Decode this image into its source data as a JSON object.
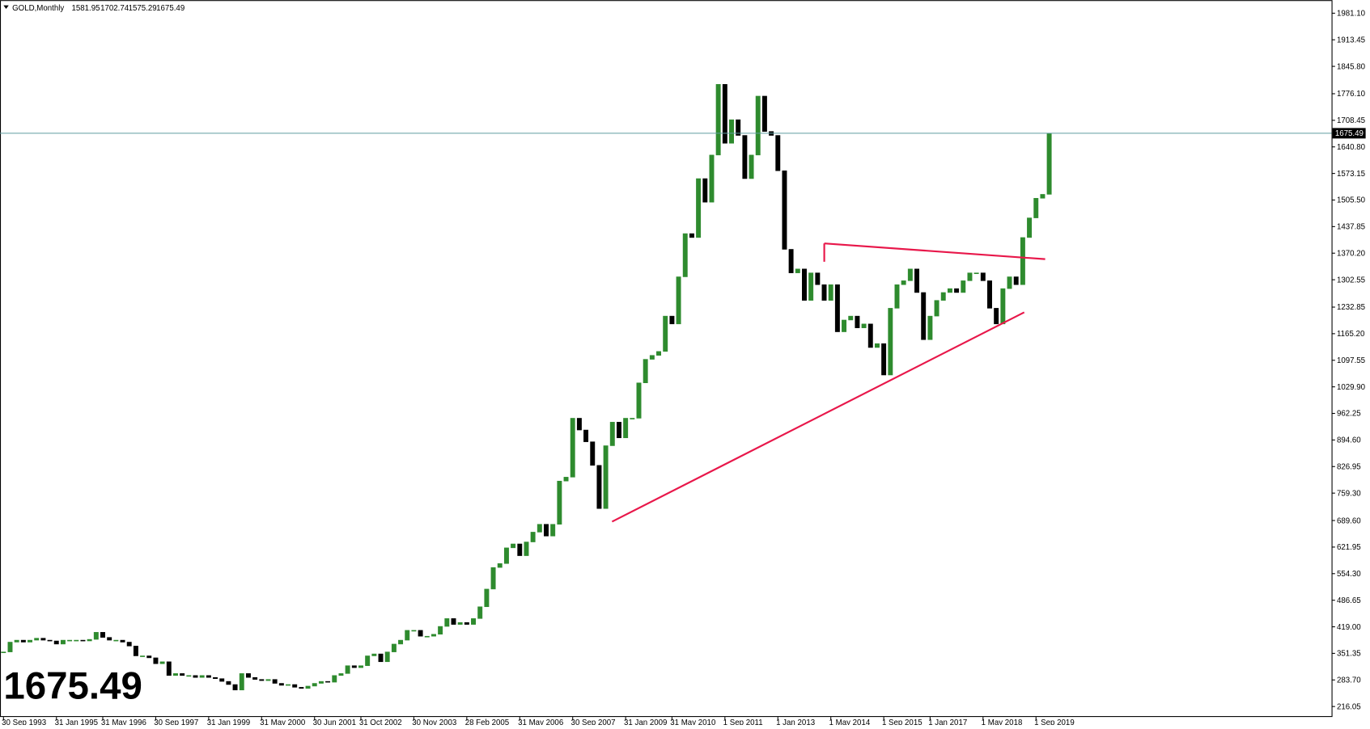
{
  "chart_data": {
    "type": "candlestick",
    "symbol": "GOLD,Monthly",
    "last_bar": {
      "open": "1581.95",
      "high": "1702.74",
      "low": "1575.29",
      "close": "1675.49"
    },
    "categories": [
      "30 Sep 1993",
      null,
      null,
      null,
      null,
      null,
      null,
      null,
      "31 Jan 1995",
      null,
      null,
      null,
      null,
      null,
      null,
      "31 May 1996",
      null,
      null,
      null,
      null,
      null,
      null,
      null,
      "30 Sep 1997",
      null,
      null,
      null,
      null,
      null,
      null,
      null,
      "31 Jan 1999",
      null,
      null,
      null,
      null,
      null,
      null,
      null,
      "31 May 2000",
      null,
      null,
      null,
      null,
      null,
      null,
      null,
      "30 Jun 2001",
      null,
      null,
      null,
      null,
      null,
      null,
      "31 Oct 2002",
      null,
      null,
      null,
      null,
      null,
      null,
      null,
      "30 Nov 2003",
      null,
      null,
      null,
      null,
      null,
      null,
      null,
      "28 Feb 2005",
      null,
      null,
      null,
      null,
      null,
      null,
      null,
      "31 May 2006",
      null,
      null,
      null,
      null,
      null,
      null,
      null,
      "30 Sep 2007",
      null,
      null,
      null,
      null,
      null,
      null,
      null,
      "31 Jan 2009",
      null,
      null,
      null,
      null,
      null,
      null,
      "31 May 2010",
      null,
      null,
      null,
      null,
      null,
      null,
      null,
      "1 Sep 2011",
      null,
      null,
      null,
      null,
      null,
      null,
      null,
      "1 Jan 2013",
      null,
      null,
      null,
      null,
      null,
      null,
      null,
      "1 May 2014",
      null,
      null,
      null,
      null,
      null,
      null,
      null,
      "1 Sep 2015",
      null,
      null,
      null,
      null,
      null,
      null,
      "1 Jan 2017",
      null,
      null,
      null,
      null,
      null,
      null,
      null,
      "1 May 2018",
      null,
      null,
      null,
      null,
      null,
      null,
      null,
      "1 Sep 2019",
      null,
      null
    ],
    "values": [
      355,
      380,
      385,
      380,
      385,
      390,
      385,
      383,
      375,
      385,
      385,
      385,
      383,
      387,
      405,
      392,
      385,
      385,
      380,
      370,
      345,
      345,
      340,
      325,
      330,
      295,
      300,
      295,
      295,
      290,
      295,
      290,
      287,
      280,
      272,
      258,
      300,
      290,
      285,
      282,
      285,
      275,
      270,
      272,
      265,
      262,
      268,
      275,
      280,
      278,
      295,
      300,
      320,
      315,
      320,
      345,
      350,
      330,
      355,
      375,
      385,
      410,
      410,
      395,
      395,
      400,
      420,
      440,
      425,
      430,
      425,
      440,
      470,
      515,
      570,
      580,
      620,
      630,
      600,
      635,
      660,
      680,
      650,
      680,
      790,
      800,
      950,
      920,
      890,
      830,
      720,
      880,
      940,
      900,
      950,
      950,
      1040,
      1100,
      1110,
      1120,
      1210,
      1190,
      1310,
      1420,
      1410,
      1560,
      1500,
      1620,
      1800,
      1650,
      1710,
      1670,
      1560,
      1620,
      1770,
      1680,
      1670,
      1580,
      1380,
      1320,
      1330,
      1250,
      1320,
      1290,
      1250,
      1290,
      1170,
      1200,
      1210,
      1180,
      1190,
      1130,
      1140,
      1060,
      1230,
      1290,
      1300,
      1330,
      1270,
      1150,
      1210,
      1250,
      1270,
      1280,
      1270,
      1300,
      1320,
      1320,
      1300,
      1230,
      1190,
      1280,
      1310,
      1290,
      1410,
      1460,
      1510,
      1520,
      1675.49
    ],
    "up_color": "#2e8b2e",
    "down_color": "#000000",
    "price_line_color": "#5f9ea0",
    "ylim": [
      189.4,
      2014.4
    ],
    "yticks": [
      {
        "value": 1981.1,
        "label": "1981.10"
      },
      1913.45,
      {
        "value": 1845.8,
        "label": "1845.80"
      },
      {
        "value": 1776.1,
        "label": "1776.10"
      },
      1708.45,
      {
        "value": 1640.8,
        "label": "1640.80"
      },
      1573.15,
      {
        "value": 1505.5,
        "label": "1505.50"
      },
      1437.85,
      {
        "value": 1370.2,
        "label": "1370.20"
      },
      1302.55,
      1232.85,
      {
        "value": 1165.2,
        "label": "1165.20"
      },
      1097.55,
      {
        "value": 1029.9,
        "label": "1029.90"
      },
      962.25,
      {
        "value": 894.6,
        "label": "894.60"
      },
      826.95,
      {
        "value": 759.3,
        "label": "759.30"
      },
      {
        "value": 689.6,
        "label": "689.60"
      },
      621.95,
      {
        "value": 554.3,
        "label": "554.30"
      },
      486.65,
      {
        "value": 419,
        "label": "419.00"
      },
      351.35,
      {
        "value": 283.7,
        "label": "283.70"
      },
      216.05
    ]
  }
}
